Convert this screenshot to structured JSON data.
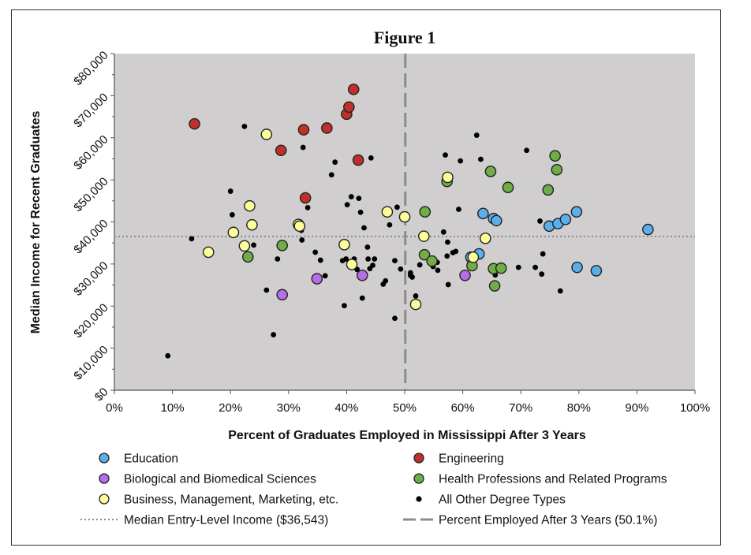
{
  "chart_data": {
    "type": "scatter",
    "title": "Figure 1",
    "xlabel": "Percent of Graduates Employed in Mississippi After 3 Years",
    "ylabel": "Median Income for Recent Graduates",
    "xlim": [
      0,
      100
    ],
    "ylim": [
      0,
      80000
    ],
    "x_ticks": [
      "0%",
      "10%",
      "20%",
      "30%",
      "40%",
      "50%",
      "60%",
      "70%",
      "80%",
      "90%",
      "100%"
    ],
    "y_ticks": [
      "$0",
      "$10,000",
      "$20,000",
      "$30,000",
      "$40,000",
      "$50,000",
      "$60,000",
      "$70,000",
      "$80,000"
    ],
    "grid": false,
    "background": "#d0cece",
    "legend_position": "bottom",
    "reference_lines": [
      {
        "name": "Median Entry-Level Income ($36,543)",
        "orientation": "horizontal",
        "value": 36543,
        "style": "dotted",
        "color": "#8c8c8c"
      },
      {
        "name": "Percent Employed After 3 Years (50.1%)",
        "orientation": "vertical",
        "value": 50.1,
        "style": "dashed",
        "color": "#8c8c8c"
      }
    ],
    "series": [
      {
        "name": "Education",
        "color": "#5aaeea",
        "marker": "circle-large",
        "points": [
          [
            63.5,
            42000
          ],
          [
            65.3,
            40800
          ],
          [
            65.8,
            40300
          ],
          [
            62.8,
            32400
          ],
          [
            61.4,
            31600
          ],
          [
            74.9,
            39000
          ],
          [
            76.4,
            39600
          ],
          [
            77.7,
            40600
          ],
          [
            79.6,
            42400
          ],
          [
            79.7,
            29200
          ],
          [
            83.0,
            28400
          ],
          [
            91.9,
            38200
          ]
        ]
      },
      {
        "name": "Engineering",
        "color": "#c0302a",
        "marker": "circle-large",
        "points": [
          [
            13.8,
            63300
          ],
          [
            28.7,
            57000
          ],
          [
            32.6,
            61900
          ],
          [
            32.9,
            45700
          ],
          [
            36.6,
            62300
          ],
          [
            40.0,
            65600
          ],
          [
            40.4,
            67300
          ],
          [
            41.2,
            71500
          ],
          [
            42.0,
            54700
          ]
        ]
      },
      {
        "name": "Biological and Biomedical Sciences",
        "color": "#b66de8",
        "marker": "circle-large",
        "points": [
          [
            28.9,
            22700
          ],
          [
            34.9,
            26500
          ],
          [
            42.7,
            27300
          ],
          [
            60.4,
            27300
          ]
        ]
      },
      {
        "name": "Health Professions and Related Programs",
        "color": "#70ad47",
        "marker": "circle-large",
        "points": [
          [
            23.0,
            31700
          ],
          [
            28.9,
            34400
          ],
          [
            53.5,
            42400
          ],
          [
            53.4,
            32200
          ],
          [
            54.7,
            30700
          ],
          [
            57.3,
            49600
          ],
          [
            61.6,
            29600
          ],
          [
            64.8,
            52000
          ],
          [
            65.3,
            28900
          ],
          [
            65.5,
            24800
          ],
          [
            66.6,
            29000
          ],
          [
            67.8,
            48200
          ],
          [
            74.7,
            47600
          ],
          [
            75.9,
            55700
          ],
          [
            76.2,
            52400
          ]
        ]
      },
      {
        "name": "Business, Management, Marketing, etc.",
        "color": "#fefe9a",
        "marker": "circle-large",
        "points": [
          [
            16.2,
            32800
          ],
          [
            20.5,
            37500
          ],
          [
            22.4,
            34300
          ],
          [
            23.3,
            43800
          ],
          [
            23.7,
            39300
          ],
          [
            26.2,
            60800
          ],
          [
            31.7,
            39400
          ],
          [
            31.9,
            39000
          ],
          [
            39.6,
            34600
          ],
          [
            40.9,
            29900
          ],
          [
            47.0,
            42400
          ],
          [
            50.0,
            41200
          ],
          [
            51.9,
            20400
          ],
          [
            53.3,
            36600
          ],
          [
            57.4,
            50600
          ],
          [
            61.8,
            31600
          ],
          [
            63.9,
            36100
          ]
        ]
      },
      {
        "name": "All Other Degree Types",
        "color": "#000000",
        "marker": "dot-small",
        "points": [
          [
            9.2,
            8200
          ],
          [
            13.3,
            36000
          ],
          [
            20.0,
            47300
          ],
          [
            20.3,
            41700
          ],
          [
            22.4,
            62700
          ],
          [
            24.0,
            34500
          ],
          [
            26.2,
            23800
          ],
          [
            27.4,
            13200
          ],
          [
            28.1,
            31200
          ],
          [
            32.2,
            38000
          ],
          [
            32.3,
            35700
          ],
          [
            32.5,
            57700
          ],
          [
            33.3,
            43400
          ],
          [
            34.6,
            32800
          ],
          [
            35.5,
            30900
          ],
          [
            36.3,
            27200
          ],
          [
            37.4,
            51200
          ],
          [
            38.0,
            54200
          ],
          [
            39.3,
            30800
          ],
          [
            39.6,
            20100
          ],
          [
            39.9,
            31200
          ],
          [
            40.1,
            44100
          ],
          [
            40.8,
            46000
          ],
          [
            41.3,
            31200
          ],
          [
            41.8,
            28700
          ],
          [
            42.1,
            45600
          ],
          [
            42.4,
            42300
          ],
          [
            42.7,
            21900
          ],
          [
            43.0,
            38600
          ],
          [
            43.6,
            34000
          ],
          [
            43.7,
            31200
          ],
          [
            44.0,
            28900
          ],
          [
            44.2,
            55200
          ],
          [
            44.8,
            31200
          ],
          [
            44.5,
            29700
          ],
          [
            46.3,
            25200
          ],
          [
            46.7,
            26000
          ],
          [
            47.4,
            39300
          ],
          [
            48.3,
            17100
          ],
          [
            48.3,
            30800
          ],
          [
            48.7,
            43500
          ],
          [
            49.3,
            28800
          ],
          [
            51.0,
            27300
          ],
          [
            51.0,
            27900
          ],
          [
            51.3,
            26900
          ],
          [
            51.9,
            22400
          ],
          [
            52.6,
            29800
          ],
          [
            54.9,
            29400
          ],
          [
            55.6,
            30400
          ],
          [
            55.7,
            28500
          ],
          [
            56.7,
            37600
          ],
          [
            57.0,
            55900
          ],
          [
            57.3,
            31900
          ],
          [
            57.4,
            35200
          ],
          [
            57.5,
            25100
          ],
          [
            58.3,
            32700
          ],
          [
            58.8,
            33000
          ],
          [
            59.3,
            43000
          ],
          [
            59.6,
            54500
          ],
          [
            61.2,
            30100
          ],
          [
            62.4,
            60600
          ],
          [
            63.1,
            54900
          ],
          [
            65.6,
            27400
          ],
          [
            69.6,
            29200
          ],
          [
            71.0,
            57000
          ],
          [
            72.5,
            29200
          ],
          [
            73.3,
            40200
          ],
          [
            73.6,
            27600
          ],
          [
            73.8,
            32400
          ],
          [
            76.8,
            23600
          ]
        ]
      }
    ]
  }
}
